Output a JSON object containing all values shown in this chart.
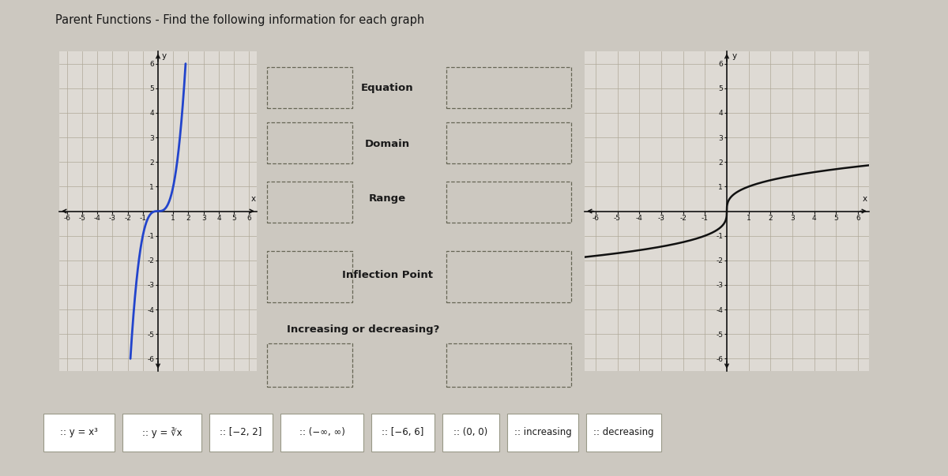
{
  "title": "Parent Functions - Find the following information for each graph",
  "title_fontsize": 10.5,
  "title_color": "#1a1a1a",
  "bg_color": "#ccc8c0",
  "graph_bg": "#dedad4",
  "grid_color": "#b0a898",
  "axis_color": "#111111",
  "graph1_color": "#2244cc",
  "graph2_color": "#111111",
  "xlim": [
    -6.5,
    6.5
  ],
  "ylim": [
    -6.5,
    6.5
  ],
  "xticks": [
    -6,
    -5,
    -4,
    -3,
    -2,
    -1,
    1,
    2,
    3,
    4,
    5,
    6
  ],
  "yticks": [
    -6,
    -5,
    -4,
    -3,
    -2,
    -1,
    1,
    2,
    3,
    4,
    5,
    6
  ],
  "form_labels": [
    "Equation",
    "Domain",
    "Range",
    "Inflection Point",
    "Increasing or decreasing?"
  ],
  "answer_tiles": [
    ":: y = x³",
    ":: y = ∛x",
    ":: [−2, 2]",
    ":: (−∞, ∞)",
    ":: [−6, 6]",
    ":: (0, 0)",
    ":: increasing",
    ":: decreasing"
  ]
}
